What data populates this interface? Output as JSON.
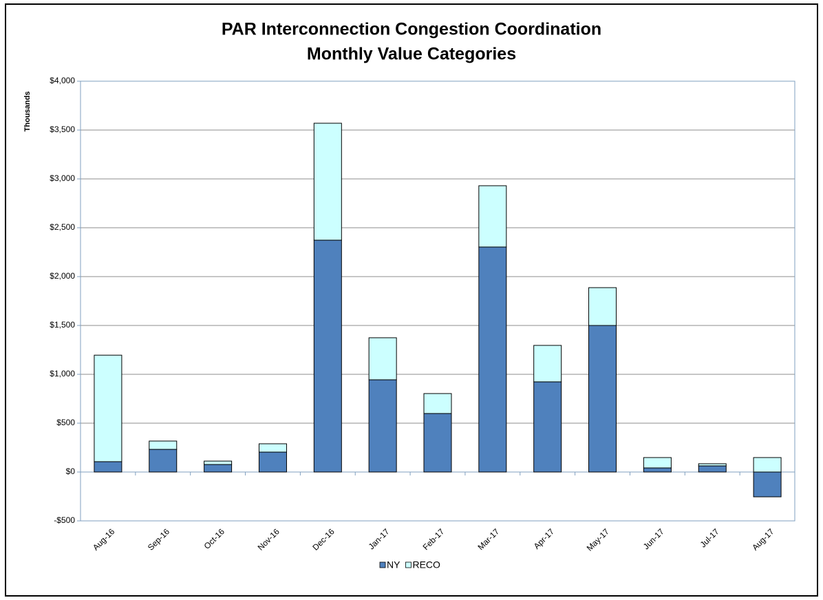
{
  "chart_data": {
    "type": "stacked_bar",
    "title": "PAR Interconnection Congestion Coordination",
    "subtitle": "Monthly Value Categories",
    "y_axis_label": "Thousands",
    "categories": [
      "Aug-16",
      "Sep-16",
      "Oct-16",
      "Nov-16",
      "Dec-16",
      "Jan-17",
      "Feb-17",
      "Mar-17",
      "Apr-17",
      "May-17",
      "Jun-17",
      "Jul-17",
      "Aug-17"
    ],
    "series": [
      {
        "name": "NY",
        "color": "#4f81bd",
        "values": [
          106,
          232,
          77,
          204,
          2373,
          944,
          599,
          2303,
          923,
          1500,
          42,
          63,
          -254
        ]
      },
      {
        "name": "RECO",
        "color": "#ccffff",
        "values": [
          1090,
          85,
          35,
          85,
          1197,
          430,
          204,
          627,
          373,
          387,
          106,
          22,
          148
        ]
      }
    ],
    "ylim": [
      -500,
      4000
    ],
    "yticks": [
      {
        "value": -500,
        "label": "-$500"
      },
      {
        "value": 0,
        "label": "$0"
      },
      {
        "value": 500,
        "label": "$500"
      },
      {
        "value": 1000,
        "label": "$1,000"
      },
      {
        "value": 1500,
        "label": "$1,500"
      },
      {
        "value": 2000,
        "label": "$2,000"
      },
      {
        "value": 2500,
        "label": "$2,500"
      },
      {
        "value": 3000,
        "label": "$3,000"
      },
      {
        "value": 3500,
        "label": "$3,500"
      },
      {
        "value": 4000,
        "label": "$4,000"
      }
    ],
    "grid": true,
    "legend": "bottom"
  }
}
